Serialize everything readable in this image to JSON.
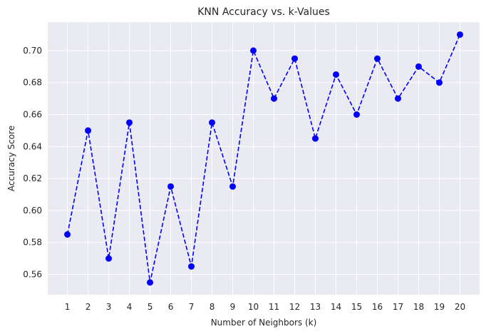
{
  "chart_data": {
    "type": "line",
    "title": "KNN Accuracy vs. k-Values",
    "xlabel": "Number of Neighbors (k)",
    "ylabel": "Accuracy Score",
    "x": [
      1,
      2,
      3,
      4,
      5,
      6,
      7,
      8,
      9,
      10,
      11,
      12,
      13,
      14,
      15,
      16,
      17,
      18,
      19,
      20
    ],
    "series": [
      {
        "values": [
          0.585,
          0.65,
          0.57,
          0.655,
          0.555,
          0.615,
          0.565,
          0.655,
          0.615,
          0.7,
          0.67,
          0.695,
          0.645,
          0.685,
          0.66,
          0.695,
          0.67,
          0.69,
          0.68,
          0.71
        ],
        "color": "#0000ff",
        "line_style": "dashed",
        "marker": "circle"
      }
    ],
    "xticks": [
      "1",
      "2",
      "3",
      "4",
      "5",
      "6",
      "7",
      "8",
      "9",
      "10",
      "11",
      "12",
      "13",
      "14",
      "15",
      "16",
      "17",
      "18",
      "19",
      "20"
    ],
    "yticks": [
      "0.56",
      "0.58",
      "0.60",
      "0.62",
      "0.64",
      "0.66",
      "0.68",
      "0.70"
    ],
    "ylim": [
      0.5473,
      0.7178
    ],
    "xlim": [
      0.05,
      20.95
    ],
    "grid": true,
    "background": "#eaeaf2",
    "grid_color": "#ffffff"
  }
}
